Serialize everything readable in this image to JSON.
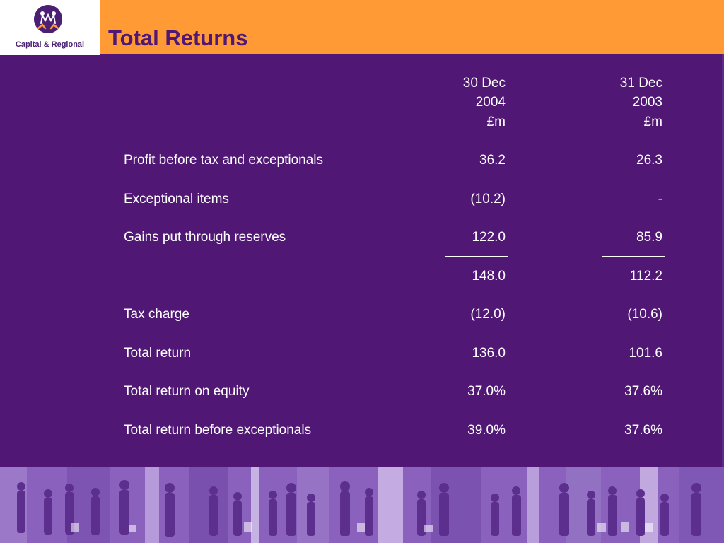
{
  "header": {
    "title": "Total Returns",
    "logo_text": "Capital & Regional",
    "accent_color": "#FF9A35",
    "background_color": "#501874"
  },
  "table": {
    "columns": [
      {
        "line1": "30 Dec",
        "line2": "2004",
        "line3": "£m"
      },
      {
        "line1": "31 Dec",
        "line2": "2003",
        "line3": "£m"
      }
    ],
    "rows": [
      {
        "label": "Profit before tax and exceptionals",
        "v1": "36.2",
        "v2": "26.3"
      },
      {
        "label": "Exceptional items",
        "v1": "(10.2)",
        "v2": "-"
      },
      {
        "label": "Gains put through reserves",
        "v1": "122.0",
        "v2": "85.9"
      },
      {
        "label": "",
        "v1": "148.0",
        "v2": "112.2"
      },
      {
        "label": "Tax charge",
        "v1": "(12.0)",
        "v2": "(10.6)"
      },
      {
        "label": "Total return",
        "v1": "136.0",
        "v2": "101.6"
      },
      {
        "label": "Total return on equity",
        "v1": "37.0%",
        "v2": "37.6%"
      },
      {
        "label": "Total return before exceptionals",
        "v1": "39.0%",
        "v2": "37.6%"
      }
    ]
  }
}
